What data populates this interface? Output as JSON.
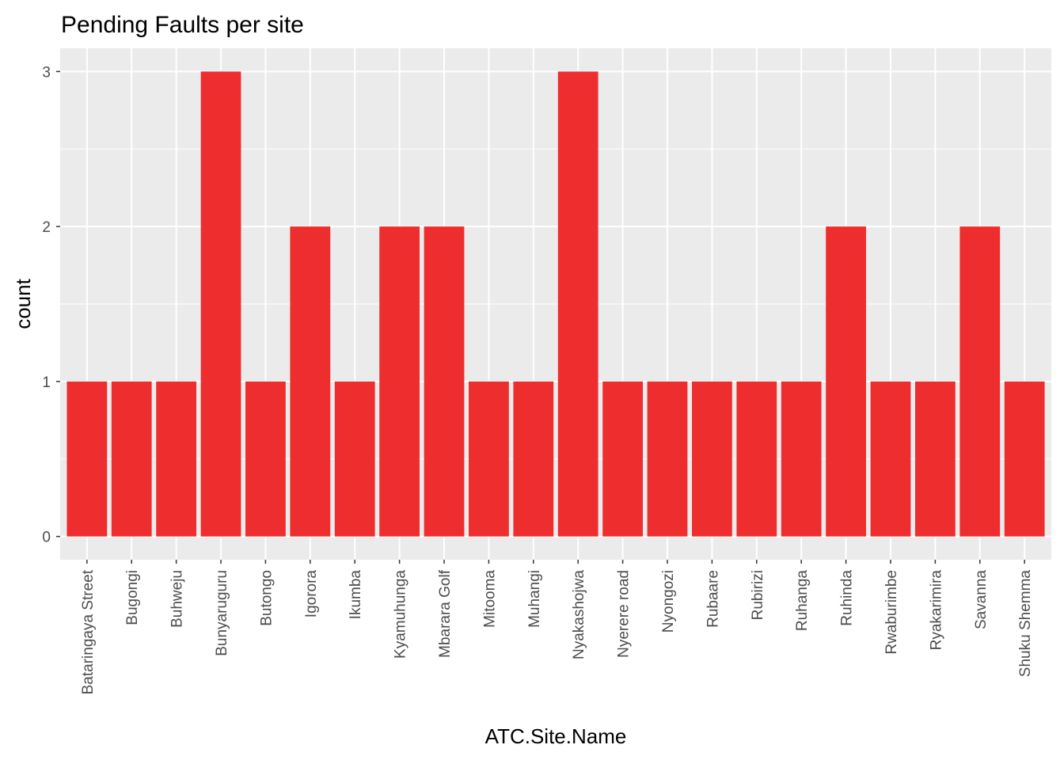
{
  "chart_data": {
    "type": "bar",
    "title": "Pending Faults per site",
    "xlabel": "ATC.Site.Name",
    "ylabel": "count",
    "categories": [
      "Bataringaya Street",
      "Bugongi",
      "Buhweju",
      "Bunyaruguru",
      "Butongo",
      "Igorora",
      "Ikumba",
      "Kyamuhunga",
      "Mbarara Golf",
      "Mitooma",
      "Muhangi",
      "Nyakashojwa",
      "Nyerere road",
      "Nyongozi",
      "Rubaare",
      "Rubirizi",
      "Ruhanga",
      "Ruhinda",
      "Rwaburimbe",
      "Ryakarimira",
      "Savanna",
      "Shuku Shemma"
    ],
    "values": [
      1,
      1,
      1,
      3,
      1,
      2,
      1,
      2,
      2,
      1,
      1,
      3,
      1,
      1,
      1,
      1,
      1,
      2,
      1,
      1,
      2,
      1
    ],
    "ylim": [
      -0.15,
      3.15
    ],
    "yticks": [
      0,
      1,
      2,
      3
    ],
    "grid": true,
    "colors": {
      "bar": "#EE2D2E",
      "panel": "#EBEBEB",
      "grid": "#FFFFFF"
    }
  }
}
